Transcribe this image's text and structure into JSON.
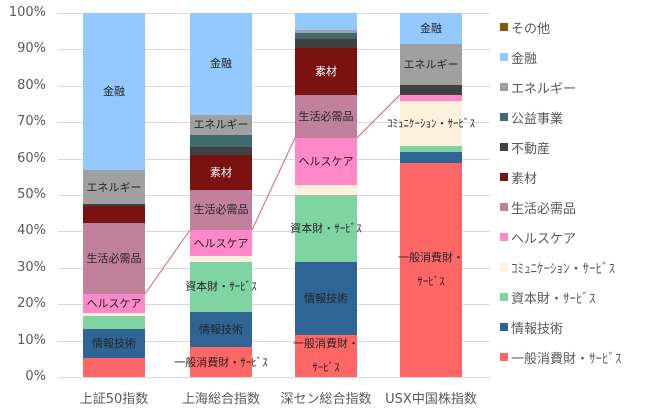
{
  "chart_data": {
    "type": "bar",
    "stacked": true,
    "percent": true,
    "title": "",
    "xlabel": "",
    "ylabel": "",
    "ylim": [
      0,
      100
    ],
    "yticks": [
      "0%",
      "10%",
      "20%",
      "30%",
      "40%",
      "50%",
      "60%",
      "70%",
      "80%",
      "90%",
      "100%"
    ],
    "grid": true,
    "legend_position": "right",
    "categories": [
      "上証50指数",
      "上海総合指数",
      "深セン総合指数",
      "USX中国株指数"
    ],
    "series": [
      {
        "name": "一般消費財・ｻｰﾋﾞｽ",
        "color": "#ff6666",
        "values": [
          5.2,
          8.2,
          11.5,
          58.8
        ]
      },
      {
        "name": "情報技術",
        "color": "#2e6496",
        "values": [
          8.0,
          9.7,
          20.1,
          3.0
        ]
      },
      {
        "name": "資本財・ｻｰﾋﾞｽ",
        "color": "#7fd4a2",
        "values": [
          3.6,
          13.7,
          18.4,
          1.7
        ]
      },
      {
        "name": "ｺﾐｭﾆｹｰｼｮﾝ・ｻｰﾋﾞｽ",
        "color": "#fdf0dc",
        "values": [
          0.8,
          1.6,
          2.8,
          12.3
        ]
      },
      {
        "name": "ヘルスケア",
        "color": "#ff88c8",
        "values": [
          5.2,
          7.2,
          12.9,
          1.7
        ]
      },
      {
        "name": "生活必需品",
        "color": "#c0809e",
        "values": [
          19.5,
          11.0,
          11.8,
          0.0
        ]
      },
      {
        "name": "素材",
        "color": "#7a1212",
        "values": [
          4.7,
          9.6,
          12.9,
          0.0
        ]
      },
      {
        "name": "不動産",
        "color": "#404040",
        "values": [
          0.5,
          2.2,
          2.5,
          2.7
        ]
      },
      {
        "name": "公益事業",
        "color": "#3f6a6e",
        "values": [
          0.0,
          3.3,
          1.6,
          0.0
        ]
      },
      {
        "name": "エネルギー",
        "color": "#a0a0a0",
        "values": [
          9.4,
          5.5,
          0.8,
          11.3
        ]
      },
      {
        "name": "金融",
        "color": "#94c9ff",
        "values": [
          43.1,
          28.0,
          4.7,
          8.5
        ]
      },
      {
        "name": "その他",
        "color": "#7f5a10",
        "values": [
          0.0,
          0.0,
          0.0,
          0.0
        ]
      }
    ],
    "segment_labels": [
      {
        "bar": 0,
        "series": "情報技術",
        "text": "情報技術"
      },
      {
        "bar": 0,
        "series": "ヘルスケア",
        "text": "ヘルスケア"
      },
      {
        "bar": 0,
        "series": "生活必需品",
        "text": "生活必需品"
      },
      {
        "bar": 0,
        "series": "エネルギー",
        "text": "エネルギー"
      },
      {
        "bar": 0,
        "series": "金融",
        "text": "金融"
      },
      {
        "bar": 1,
        "series": "一般消費財・ｻｰﾋﾞｽ",
        "text": "一般消費財・ｻｰﾋﾞｽ"
      },
      {
        "bar": 1,
        "series": "情報技術",
        "text": "情報技術"
      },
      {
        "bar": 1,
        "series": "資本財・ｻｰﾋﾞｽ",
        "text": "資本財・ｻｰﾋﾞｽ"
      },
      {
        "bar": 1,
        "series": "ヘルスケア",
        "text": "ヘルスケア"
      },
      {
        "bar": 1,
        "series": "生活必需品",
        "text": "生活必需品"
      },
      {
        "bar": 1,
        "series": "素材",
        "text": "素材"
      },
      {
        "bar": 1,
        "series": "エネルギー",
        "text": "エネルギー"
      },
      {
        "bar": 1,
        "series": "金融",
        "text": "金融"
      },
      {
        "bar": 2,
        "series": "一般消費財・ｻｰﾋﾞｽ",
        "text": "一般消費財・\nｻｰﾋﾞｽ"
      },
      {
        "bar": 2,
        "series": "情報技術",
        "text": "情報技術"
      },
      {
        "bar": 2,
        "series": "資本財・ｻｰﾋﾞｽ",
        "text": "資本財・ｻｰﾋﾞｽ"
      },
      {
        "bar": 2,
        "series": "ヘルスケア",
        "text": "ヘルスケア"
      },
      {
        "bar": 2,
        "series": "生活必需品",
        "text": "生活必需品"
      },
      {
        "bar": 2,
        "series": "素材",
        "text": "素材"
      },
      {
        "bar": 3,
        "series": "一般消費財・ｻｰﾋﾞｽ",
        "text": "一般消費財・\nｻｰﾋﾞｽ"
      },
      {
        "bar": 3,
        "series": "ｺﾐｭﾆｹｰｼｮﾝ・ｻｰﾋﾞｽ",
        "text": "ｺﾐｭﾆｹｰｼｮﾝ・ｻｰﾋﾞｽ"
      },
      {
        "bar": 3,
        "series": "エネルギー",
        "text": "エネルギー"
      },
      {
        "bar": 3,
        "series": "金融",
        "text": "金融"
      }
    ],
    "series_lines": {
      "series": "ヘルスケア",
      "color": "#e06070",
      "edge": "top"
    },
    "legend_order": [
      "その他",
      "金融",
      "エネルギー",
      "公益事業",
      "不動産",
      "素材",
      "生活必需品",
      "ヘルスケア",
      "ｺﾐｭﾆｹｰｼｮﾝ・ｻｰﾋﾞｽ",
      "資本財・ｻｰﾋﾞｽ",
      "情報技術",
      "一般消費財・ｻｰﾋﾞｽ"
    ]
  }
}
